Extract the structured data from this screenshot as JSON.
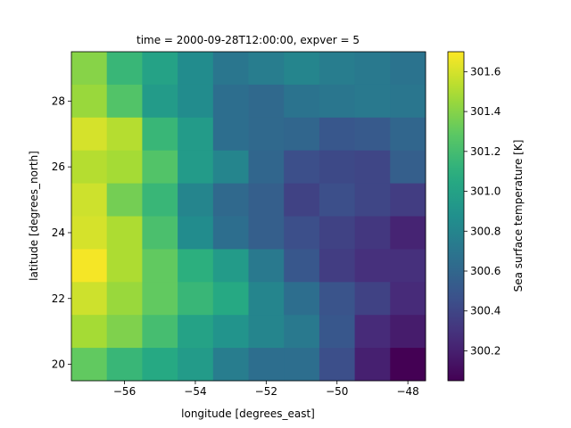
{
  "chart_data": {
    "type": "heatmap",
    "title": "time = 2000-09-28T12:00:00, expver = 5",
    "xlabel": "longitude [degrees_east]",
    "ylabel": "latitude [degrees_north]",
    "colorbar_label": "Sea surface temperature [K]",
    "colormap": "viridis",
    "x": [
      -57,
      -56,
      -55,
      -54,
      -53,
      -52,
      -51,
      -50,
      -49,
      -48
    ],
    "y": [
      29,
      28,
      27,
      26,
      25,
      24,
      23,
      22,
      21,
      20
    ],
    "xlim": [
      -57.5,
      -47.5
    ],
    "ylim": [
      19.5,
      29.5
    ],
    "x_ticks": [
      -56,
      -54,
      -52,
      -50,
      -48
    ],
    "x_tick_labels": [
      "−56",
      "−54",
      "−52",
      "−50",
      "−48"
    ],
    "y_ticks": [
      20,
      22,
      24,
      26,
      28
    ],
    "y_tick_labels": [
      "20",
      "22",
      "24",
      "26",
      "28"
    ],
    "vmin": 300.05,
    "vmax": 301.7,
    "colorbar_ticks": [
      300.2,
      300.4,
      300.6,
      300.8,
      301.0,
      301.2,
      301.4,
      301.6
    ],
    "colorbar_tick_labels": [
      "300.2",
      "300.4",
      "300.6",
      "300.8",
      "301.0",
      "301.2",
      "301.4",
      "301.6"
    ],
    "values": [
      [
        301.4,
        301.15,
        301.0,
        300.85,
        300.7,
        300.75,
        300.8,
        300.75,
        300.72,
        300.68
      ],
      [
        301.45,
        301.25,
        300.95,
        300.85,
        300.65,
        300.62,
        300.68,
        300.7,
        300.72,
        300.7
      ],
      [
        301.6,
        301.52,
        301.15,
        300.95,
        300.65,
        300.62,
        300.6,
        300.5,
        300.52,
        300.6
      ],
      [
        301.52,
        301.48,
        301.25,
        300.95,
        300.8,
        300.6,
        300.45,
        300.42,
        300.4,
        300.55
      ],
      [
        301.58,
        301.35,
        301.15,
        300.8,
        300.62,
        300.55,
        300.38,
        300.45,
        300.4,
        300.35
      ],
      [
        301.6,
        301.5,
        301.22,
        300.85,
        300.65,
        300.55,
        300.45,
        300.38,
        300.32,
        300.22
      ],
      [
        301.68,
        301.5,
        301.3,
        301.1,
        300.95,
        300.72,
        300.5,
        300.35,
        300.28,
        300.28
      ],
      [
        301.58,
        301.45,
        301.3,
        301.15,
        301.05,
        300.8,
        300.65,
        300.48,
        300.38,
        300.25
      ],
      [
        301.48,
        301.38,
        301.2,
        301.0,
        300.9,
        300.8,
        300.72,
        300.5,
        300.25,
        300.18
      ],
      [
        301.3,
        301.15,
        301.05,
        300.95,
        300.75,
        300.65,
        300.65,
        300.45,
        300.2,
        300.05
      ]
    ]
  }
}
